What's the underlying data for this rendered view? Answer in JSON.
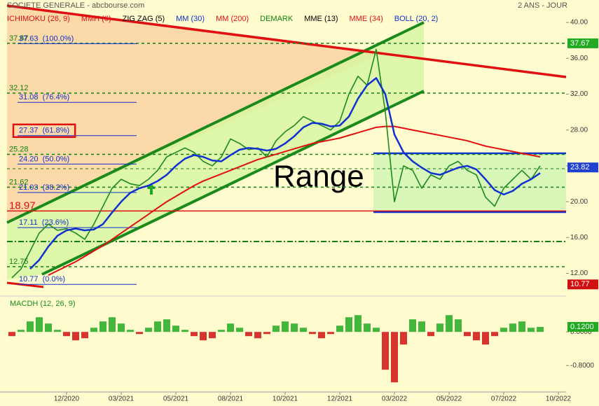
{
  "chart_data": [
    {
      "type": "line",
      "title": "SOCIETE GENERALE - abcbourse.com",
      "subtitle": "2 ANS - JOUR",
      "indicators": [
        {
          "name": "ICHIMOKU (26, 9)",
          "color": "#e01010"
        },
        {
          "name": "MMH (6)",
          "color": "#e01010"
        },
        {
          "name": "ZIG ZAG (5)",
          "color": "#000000"
        },
        {
          "name": "MM (30)",
          "color": "#1030d0"
        },
        {
          "name": "MM (200)",
          "color": "#e01010"
        },
        {
          "name": "DEMARK",
          "color": "#108010"
        },
        {
          "name": "MME (13)",
          "color": "#000000"
        },
        {
          "name": "MME (34)",
          "color": "#e01010"
        },
        {
          "name": "BOLL (20, 2)",
          "color": "#1030d0"
        }
      ],
      "annotation": "Range",
      "categories": [
        null,
        null,
        null,
        null,
        null,
        null,
        "12/2020",
        null,
        null,
        null,
        null,
        null,
        "03/2021",
        null,
        null,
        null,
        null,
        null,
        "05/2021",
        null,
        null,
        null,
        null,
        null,
        "08/2021",
        null,
        null,
        null,
        null,
        null,
        "10/2021",
        null,
        null,
        null,
        null,
        null,
        "12/2021",
        null,
        null,
        null,
        null,
        null,
        "03/2022",
        null,
        null,
        null,
        null,
        null,
        "05/2022",
        null,
        null,
        null,
        null,
        null,
        "07/2022",
        null,
        null,
        null,
        null,
        null,
        "10/2022"
      ],
      "series": [
        {
          "name": "SOCIETE GENERALE",
          "color": "#1c8a1c",
          "values": [
            11.5,
            12.5,
            14.5,
            16.5,
            17.5,
            16.8,
            17.0,
            16.5,
            15.8,
            17.5,
            19.5,
            21.5,
            22.5,
            22.0,
            21.8,
            22.5,
            23.5,
            25.0,
            25.5,
            26.0,
            25.5,
            24.5,
            24.0,
            25.0,
            27.0,
            26.5,
            25.8,
            26.0,
            25.0,
            26.8,
            27.8,
            28.5,
            29.5,
            29.0,
            28.5,
            28.0,
            29.0,
            32.0,
            34.0,
            33.0,
            37.0,
            30.0,
            20.0,
            24.0,
            23.5,
            21.5,
            23.0,
            22.5,
            24.0,
            24.5,
            23.5,
            23.0,
            20.5,
            19.5,
            21.5,
            22.5,
            23.5,
            22.5,
            24.0,
            null,
            null
          ]
        },
        {
          "name": "MM (30)",
          "color": "#1030d0",
          "values": [
            null,
            null,
            12.5,
            13.5,
            15.0,
            16.2,
            16.8,
            17.0,
            16.8,
            16.9,
            17.5,
            18.8,
            20.0,
            21.0,
            21.5,
            21.8,
            22.3,
            23.0,
            24.0,
            24.8,
            25.2,
            25.0,
            24.6,
            24.5,
            25.2,
            25.8,
            26.0,
            25.9,
            25.7,
            25.9,
            26.5,
            27.3,
            28.3,
            28.8,
            28.7,
            28.4,
            28.5,
            29.5,
            31.5,
            33.0,
            33.8,
            32.0,
            27.5,
            25.5,
            24.5,
            23.8,
            23.2,
            23.0,
            23.4,
            23.8,
            24.0,
            23.6,
            22.5,
            21.3,
            20.8,
            21.2,
            22.0,
            22.5,
            23.2,
            null,
            null
          ]
        },
        {
          "name": "MM (200)",
          "color": "#e01010",
          "values": [
            null,
            null,
            null,
            null,
            11.8,
            12.3,
            12.8,
            13.3,
            13.9,
            14.5,
            15.1,
            15.8,
            16.5,
            17.2,
            17.9,
            18.6,
            19.3,
            20.0,
            20.6,
            21.2,
            21.8,
            22.3,
            22.7,
            23.1,
            23.5,
            23.9,
            24.3,
            24.7,
            25.0,
            25.3,
            25.6,
            25.9,
            26.2,
            26.5,
            26.7,
            26.9,
            27.1,
            27.4,
            27.7,
            28.0,
            28.3,
            28.4,
            28.4,
            28.2,
            28.0,
            27.8,
            27.6,
            27.4,
            27.2,
            27.0,
            26.8,
            26.5,
            26.2,
            26.0,
            25.8,
            25.6,
            25.4,
            25.2,
            25.0,
            null,
            null
          ]
        }
      ],
      "levels": [
        {
          "value": 37.67,
          "color": "#108010"
        },
        {
          "value": 32.12,
          "color": "#108010"
        },
        {
          "value": 25.28,
          "color": "#108010"
        },
        {
          "value": 21.62,
          "color": "#108010"
        },
        {
          "value": 18.97,
          "color": "#e01010"
        },
        {
          "value": 12.75,
          "color": "#108010"
        }
      ],
      "fibonacci": [
        {
          "value": 37.63,
          "label": "37.63  (100.0%)"
        },
        {
          "value": 31.08,
          "label": "31.08  (76.4%)"
        },
        {
          "value": 27.37,
          "label": "27.37  (61.8%)"
        },
        {
          "value": 24.2,
          "label": "24.20  (50.0%)"
        },
        {
          "value": 21.03,
          "label": "21.03  (38.2%)"
        },
        {
          "value": 17.11,
          "label": "17.11  (23.6%)"
        },
        {
          "value": 10.77,
          "label": "10.77  (0.0%)"
        }
      ],
      "price_tags": [
        {
          "value": 37.67,
          "color": "#22aa22"
        },
        {
          "value": 23.82,
          "color": "#2040d0"
        },
        {
          "value": 10.77,
          "color": "#d01010"
        }
      ],
      "ylim": [
        9.7,
        41.1
      ],
      "yticks": [
        {
          "value": 12,
          "label": "12.00"
        },
        {
          "value": 16,
          "label": "16.00"
        },
        {
          "value": 20,
          "label": "20.00"
        },
        {
          "value": 24,
          "label": "24.00"
        },
        {
          "value": 28,
          "label": "28.00"
        },
        {
          "value": 32,
          "label": "32.00"
        },
        {
          "value": 36,
          "label": "36.00"
        },
        {
          "value": 40,
          "label": "40.00"
        }
      ]
    },
    {
      "type": "bar",
      "title": "MACDH (12, 26, 9)",
      "values": [
        -0.1,
        0.05,
        0.25,
        0.35,
        0.2,
        0.05,
        -0.1,
        -0.2,
        -0.15,
        0.1,
        0.25,
        0.35,
        0.2,
        0.05,
        -0.05,
        0.1,
        0.25,
        0.3,
        0.15,
        0.05,
        -0.1,
        -0.2,
        -0.15,
        0.05,
        0.2,
        0.1,
        -0.1,
        -0.15,
        -0.05,
        0.15,
        0.25,
        0.2,
        0.1,
        -0.05,
        -0.15,
        -0.05,
        0.15,
        0.35,
        0.4,
        0.2,
        0.1,
        -0.9,
        -1.2,
        -0.3,
        0.3,
        0.25,
        -0.1,
        0.2,
        0.4,
        0.3,
        -0.1,
        -0.2,
        -0.3,
        -0.1,
        0.1,
        0.2,
        0.25,
        0.1,
        0.12,
        null,
        null
      ],
      "colors": {
        "positive": "#22aa22",
        "negative": "#d01010"
      },
      "price_tags": [
        {
          "value": 0.12,
          "label": "0.1200",
          "color": "#22aa22"
        }
      ],
      "ylim": [
        -1.43,
        0.82
      ],
      "yticks": [
        {
          "value": 0,
          "label": "0.0000"
        },
        {
          "value": -0.8,
          "label": "-0.8000"
        }
      ]
    }
  ]
}
